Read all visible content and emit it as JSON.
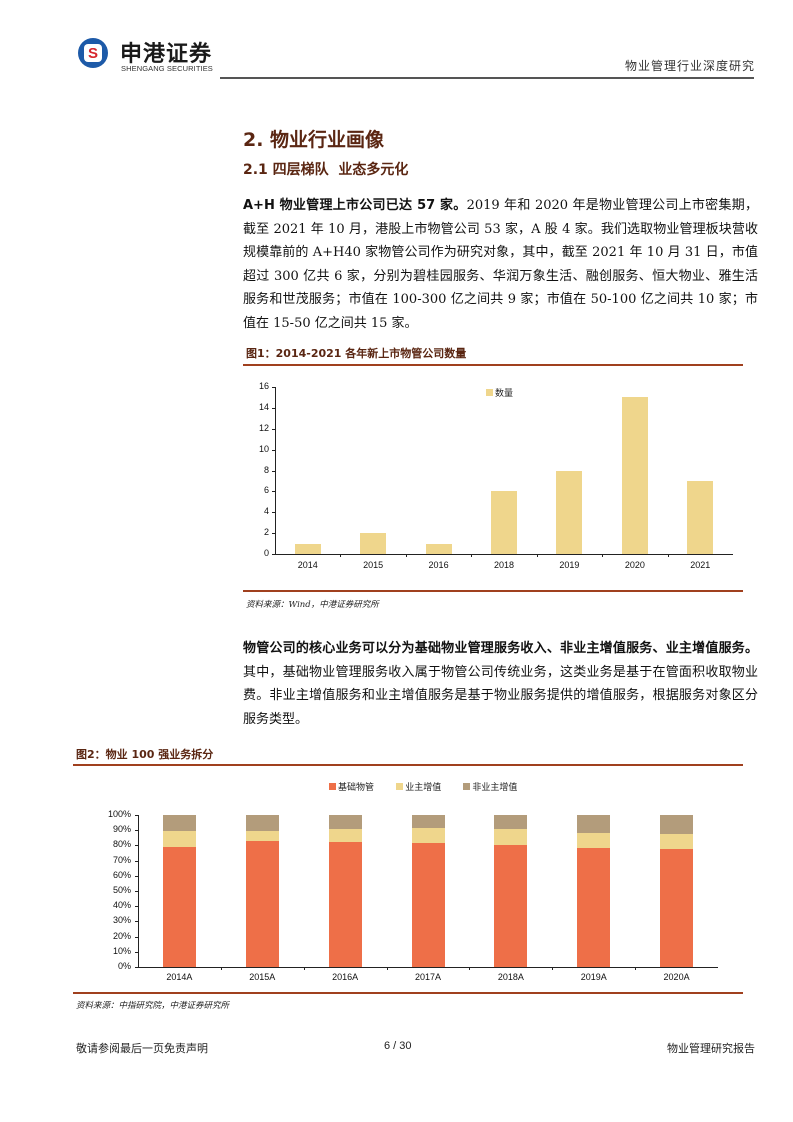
{
  "header": {
    "logo_mark": "S",
    "logo_cn": "申港证券",
    "logo_en": "SHENGANG SECURITIES",
    "report_title": "物业管理行业深度研究"
  },
  "section": {
    "h2": "2. 物业行业画像",
    "h3": "2.1 四层梯队  业态多元化"
  },
  "paragraph1": {
    "bold_lead": "A+H 物业管理上市公司已达 57 家。",
    "text": "2019 年和 2020 年是物业管理公司上市密集期，截至 2021 年 10 月，港股上市物管公司 53 家，A 股 4 家。我们选取物业管理板块营收规模靠前的 A+H40 家物管公司作为研究对象，其中，截至 2021 年 10 月 31 日，市值超过 300 亿共 6 家，分别为碧桂园服务、华润万象生活、融创服务、恒大物业、雅生活服务和世茂服务；市值在 100-300 亿之间共 9 家；市值在 50-100 亿之间共 10 家；市值在 15-50 亿之间共 15 家。"
  },
  "figure1": {
    "title": "图1：2014-2021 各年新上市物管公司数量",
    "source": "资料来源：Wind，中港证券研究所"
  },
  "paragraph2": {
    "bold_lead": "物管公司的核心业务可以分为基础物业管理服务收入、非业主增值服务、业主增值服务。",
    "text": "其中，基础物业管理服务收入属于物管公司传统业务，这类业务是基于在管面积收取物业费。非业主增值服务和业主增值服务是基于物业服务提供的增值服务，根据服务对象区分服务类型。"
  },
  "figure2": {
    "title": "图2：物业 100 强业务拆分",
    "source": "资料来源：中指研究院，中港证券研究所"
  },
  "footer": {
    "disclaimer": "敬请参阅最后一页免责声明",
    "page": "6 / 30",
    "report_type": "物业管理研究报告"
  },
  "colors": {
    "heading": "#5a2612",
    "rule": "#a0401e",
    "bar_count": "#efd68c",
    "base": "#ee6f48",
    "owner": "#efd68c",
    "non_owner": "#b39c7b"
  },
  "chart_data": [
    {
      "type": "bar",
      "title": "图1：2014-2021 各年新上市物管公司数量",
      "categories": [
        "2014",
        "2015",
        "2016",
        "2018",
        "2019",
        "2020",
        "2021"
      ],
      "series": [
        {
          "name": "数量",
          "values": [
            1,
            2,
            1,
            6,
            8,
            15,
            7
          ]
        }
      ],
      "yticks": [
        "0",
        "2",
        "4",
        "6",
        "8",
        "10",
        "12",
        "14",
        "16"
      ],
      "ylim": [
        0,
        16
      ],
      "xlabel": "",
      "ylabel": "",
      "grid": false,
      "legend_position": "top-center"
    },
    {
      "type": "bar",
      "stacked": true,
      "percent": true,
      "title": "图2：物业 100 强业务拆分",
      "categories": [
        "2014A",
        "2015A",
        "2016A",
        "2017A",
        "2018A",
        "2019A",
        "2020A"
      ],
      "series": [
        {
          "name": "基础物管",
          "values": [
            79,
            83,
            82,
            81.5,
            80,
            78,
            77.5
          ]
        },
        {
          "name": "业主增值",
          "values": [
            10.5,
            6.5,
            9,
            10,
            11,
            10,
            10
          ]
        },
        {
          "name": "非业主增值",
          "values": [
            10.5,
            10.5,
            9,
            8.5,
            9,
            12,
            12.5
          ]
        }
      ],
      "yticks": [
        "0%",
        "10%",
        "20%",
        "30%",
        "40%",
        "50%",
        "60%",
        "70%",
        "80%",
        "90%",
        "100%"
      ],
      "ylim": [
        0,
        100
      ],
      "xlabel": "",
      "ylabel": "",
      "grid": false,
      "legend_position": "top-center"
    }
  ]
}
